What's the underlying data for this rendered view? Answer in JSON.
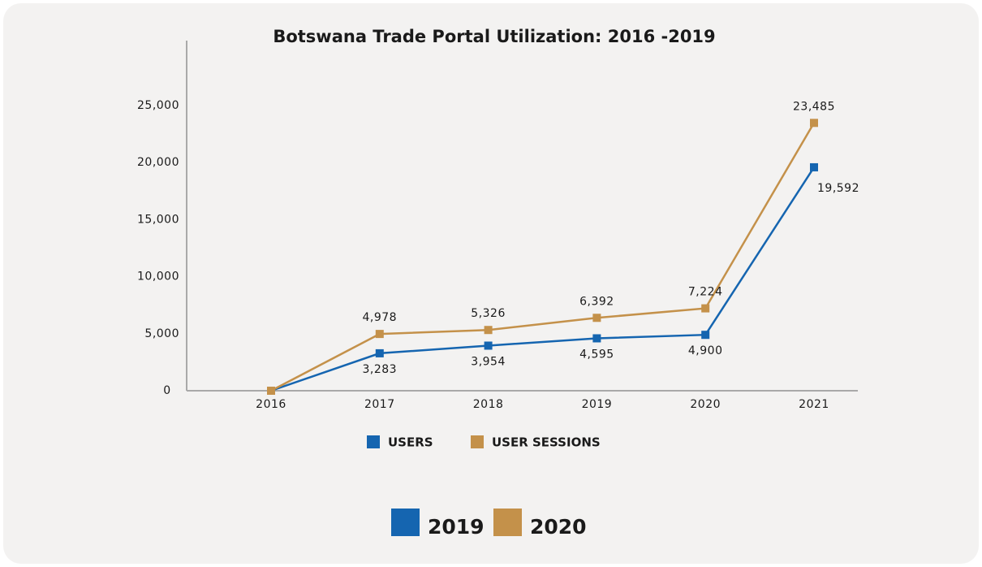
{
  "chart_data": {
    "type": "line",
    "title": "Botswana Trade Portal Utilization: 2016 -2019",
    "categories": [
      "2016",
      "2017",
      "2018",
      "2019",
      "2020",
      "2021"
    ],
    "series": [
      {
        "name": "USERS",
        "color": "#1565b0",
        "values": [
          0,
          3283,
          3954,
          4595,
          4900,
          19592
        ],
        "value_labels": [
          null,
          "3,283",
          "3,954",
          "4,595",
          "4,900",
          "19,592"
        ]
      },
      {
        "name": "USER SESSIONS",
        "color": "#c4914a",
        "values": [
          0,
          4978,
          5326,
          6392,
          7224,
          23485
        ],
        "value_labels": [
          null,
          "4,978",
          "5,326",
          "6,392",
          "7,224",
          "23,485"
        ]
      }
    ],
    "ylim": [
      0,
      30700
    ],
    "yticks": [
      0,
      {
        "value": 5000,
        "label": "5,000"
      },
      {
        "value": 10000,
        "label": "10,000"
      },
      {
        "value": 15000,
        "label": "15,000"
      },
      {
        "value": 20000,
        "label": "20,000"
      },
      {
        "value": 25000,
        "label": "25,000"
      }
    ],
    "legend_position": "bottom",
    "year_legend": [
      {
        "label": "2019",
        "color": "#1565b0"
      },
      {
        "label": "2020",
        "color": "#c4914a"
      }
    ]
  }
}
